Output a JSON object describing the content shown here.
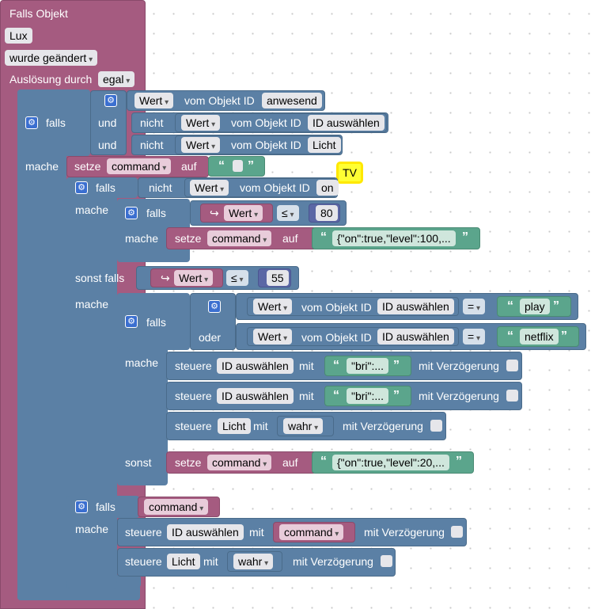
{
  "trigger": {
    "title": "Falls Objekt",
    "object": "Lux",
    "condition": "wurde geändert",
    "trigger_label": "Auslösung durch",
    "trigger_value": "egal"
  },
  "labels": {
    "falls": "falls",
    "und": "und",
    "nicht": "nicht",
    "mache": "mache",
    "oder": "oder",
    "sonst": "sonst",
    "sonst_falls": "sonst falls",
    "setze": "setze",
    "auf": "auf",
    "steuere": "steuere",
    "mit": "mit",
    "mit_verzoegerung": "mit Verzögerung",
    "vom_objekt_id": "vom Objekt ID"
  },
  "values": {
    "wert": "Wert",
    "anwesend": "anwesend",
    "id_auswaehlen": "ID auswählen",
    "licht": "Licht",
    "command": "command",
    "on": "on",
    "n80": "80",
    "n55": "55",
    "le": "≤",
    "eq": "=",
    "play": "play",
    "netflix": "netflix",
    "bri": "\"bri\":...",
    "json100": "{\"on\":true,\"level\":100,...",
    "json20": "{\"on\":true,\"level\":20,...",
    "wahr": "wahr",
    "arrow": "↪",
    "quote_open": "“",
    "quote_close": "”"
  },
  "comment": {
    "text": "TV"
  },
  "icons": {
    "gear": "gear-icon",
    "checkbox": "checkbox-icon"
  },
  "colors": {
    "event": "#a55b80",
    "logic": "#5b80a5",
    "text": "#5ba58c",
    "math": "#5b67a5",
    "background": "#ffffff",
    "comment": "#ffff33"
  }
}
